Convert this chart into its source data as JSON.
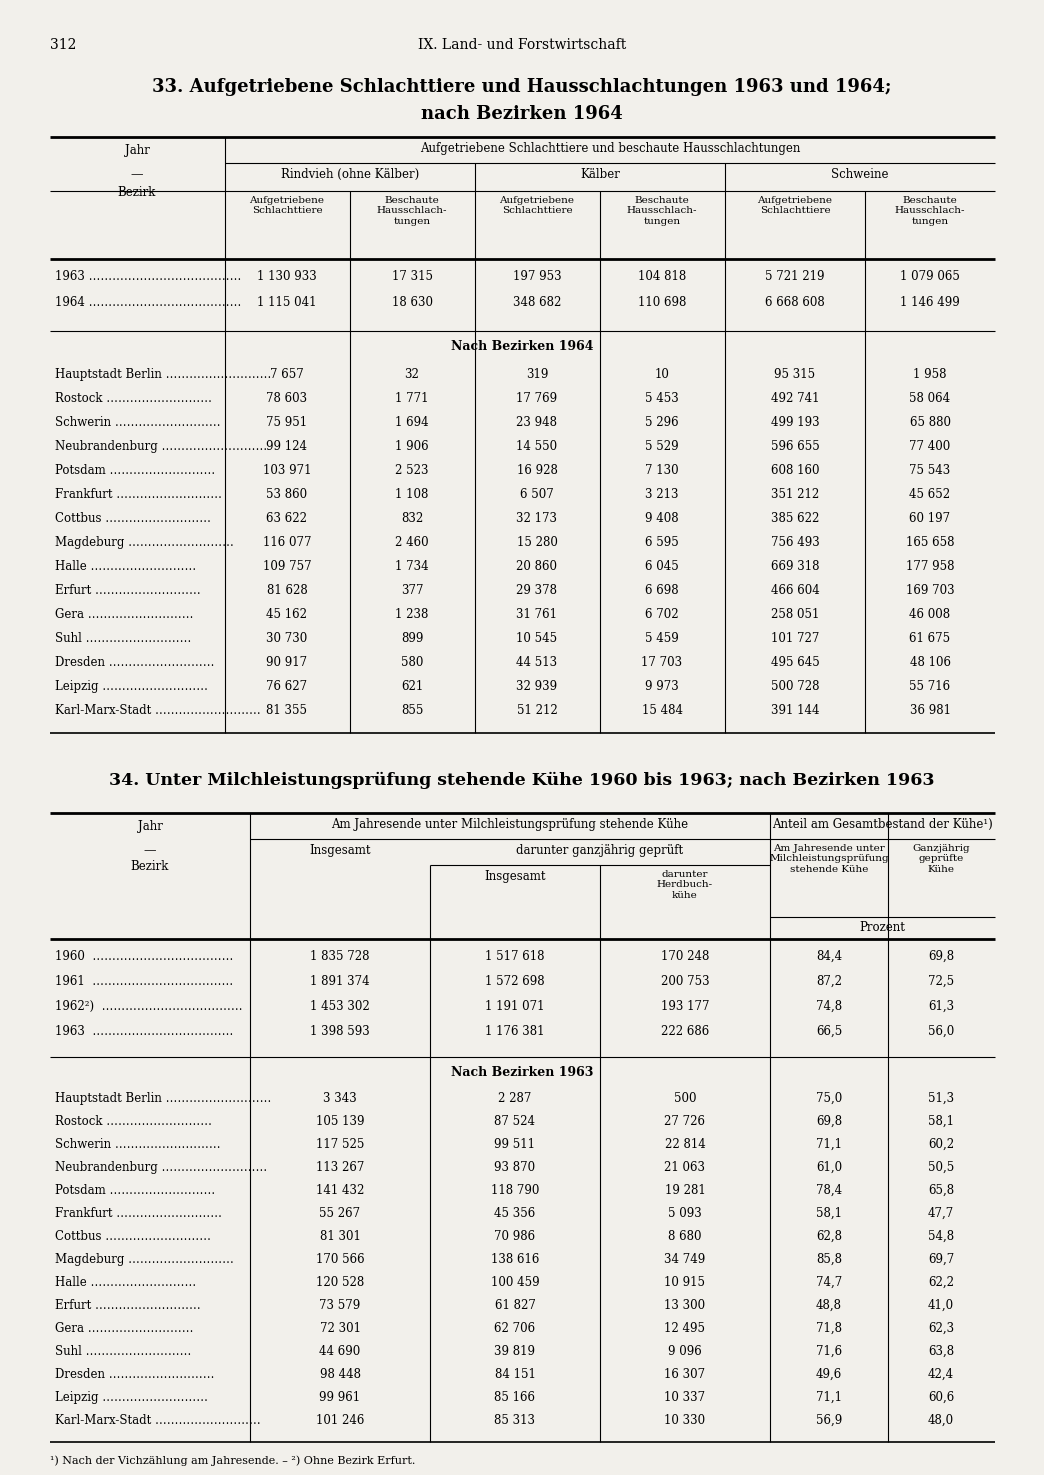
{
  "page_number": "312",
  "section_title": "IX. Land- und Forstwirtschaft",
  "table1_title_line1": "33. Aufgetriebene Schlachttiere und Hausschlachtungen 1963 und 1964;",
  "table1_title_line2": "nach Bezirken 1964",
  "table1_main_header": "Aufgetriebene Schlachttiere und beschaute Hausschlachtungen",
  "table1_year_rows": [
    [
      "1963",
      "1 130 933",
      "17 315",
      "197 953",
      "104 818",
      "5 721 219",
      "1 079 065"
    ],
    [
      "1964",
      "1 115 041",
      "18 630",
      "348 682",
      "110 698",
      "6 668 608",
      "1 146 499"
    ]
  ],
  "table1_bezirk_subheader": "Nach Bezirken 1964",
  "table1_bezirk_rows": [
    [
      "Hauptstadt Berlin",
      "7 657",
      "32",
      "319",
      "10",
      "95 315",
      "1 958"
    ],
    [
      "Rostock",
      "78 603",
      "1 771",
      "17 769",
      "5 453",
      "492 741",
      "58 064"
    ],
    [
      "Schwerin",
      "75 951",
      "1 694",
      "23 948",
      "5 296",
      "499 193",
      "65 880"
    ],
    [
      "Neubrandenburg",
      "99 124",
      "1 906",
      "14 550",
      "5 529",
      "596 655",
      "77 400"
    ],
    [
      "Potsdam",
      "103 971",
      "2 523",
      "16 928",
      "7 130",
      "608 160",
      "75 543"
    ],
    [
      "Frankfurt",
      "53 860",
      "1 108",
      "6 507",
      "3 213",
      "351 212",
      "45 652"
    ],
    [
      "Cottbus",
      "63 622",
      "832",
      "32 173",
      "9 408",
      "385 622",
      "60 197"
    ],
    [
      "Magdeburg",
      "116 077",
      "2 460",
      "15 280",
      "6 595",
      "756 493",
      "165 658"
    ],
    [
      "Halle",
      "109 757",
      "1 734",
      "20 860",
      "6 045",
      "669 318",
      "177 958"
    ],
    [
      "Erfurt",
      "81 628",
      "377",
      "29 378",
      "6 698",
      "466 604",
      "169 703"
    ],
    [
      "Gera",
      "45 162",
      "1 238",
      "31 761",
      "6 702",
      "258 051",
      "46 008"
    ],
    [
      "Suhl",
      "30 730",
      "899",
      "10 545",
      "5 459",
      "101 727",
      "61 675"
    ],
    [
      "Dresden",
      "90 917",
      "580",
      "44 513",
      "17 703",
      "495 645",
      "48 106"
    ],
    [
      "Leipzig",
      "76 627",
      "621",
      "32 939",
      "9 973",
      "500 728",
      "55 716"
    ],
    [
      "Karl-Marx-Stadt",
      "81 355",
      "855",
      "51 212",
      "15 484",
      "391 144",
      "36 981"
    ]
  ],
  "table2_title": "34. Unter Milchleistungsprüfung stehende Kühe 1960 bis 1963; nach Bezirken 1963",
  "table2_main_header1": "Am Jahresende unter Milchleistungsprüfung stehende Kühe",
  "table2_main_header2": "Anteil am Gesamtbestand der Kühe¹)",
  "table2_year_rows": [
    [
      "1960",
      "1 835 728",
      "1 517 618",
      "170 248",
      "84,4",
      "69,8"
    ],
    [
      "1961",
      "1 891 374",
      "1 572 698",
      "200 753",
      "87,2",
      "72,5"
    ],
    [
      "1962²)",
      "1 453 302",
      "1 191 071",
      "193 177",
      "74,8",
      "61,3"
    ],
    [
      "1963",
      "1 398 593",
      "1 176 381",
      "222 686",
      "66,5",
      "56,0"
    ]
  ],
  "table2_bezirk_subheader": "Nach Bezirken 1963",
  "table2_bezirk_rows": [
    [
      "Hauptstadt Berlin",
      "3 343",
      "2 287",
      "500",
      "75,0",
      "51,3"
    ],
    [
      "Rostock",
      "105 139",
      "87 524",
      "27 726",
      "69,8",
      "58,1"
    ],
    [
      "Schwerin",
      "117 525",
      "99 511",
      "22 814",
      "71,1",
      "60,2"
    ],
    [
      "Neubrandenburg",
      "113 267",
      "93 870",
      "21 063",
      "61,0",
      "50,5"
    ],
    [
      "Potsdam",
      "141 432",
      "118 790",
      "19 281",
      "78,4",
      "65,8"
    ],
    [
      "Frankfurt",
      "55 267",
      "45 356",
      "5 093",
      "58,1",
      "47,7"
    ],
    [
      "Cottbus",
      "81 301",
      "70 986",
      "8 680",
      "62,8",
      "54,8"
    ],
    [
      "Magdeburg",
      "170 566",
      "138 616",
      "34 749",
      "85,8",
      "69,7"
    ],
    [
      "Halle",
      "120 528",
      "100 459",
      "10 915",
      "74,7",
      "62,2"
    ],
    [
      "Erfurt",
      "73 579",
      "61 827",
      "13 300",
      "48,8",
      "41,0"
    ],
    [
      "Gera",
      "72 301",
      "62 706",
      "12 495",
      "71,8",
      "62,3"
    ],
    [
      "Suhl",
      "44 690",
      "39 819",
      "9 096",
      "71,6",
      "63,8"
    ],
    [
      "Dresden",
      "98 448",
      "84 151",
      "16 307",
      "49,6",
      "42,4"
    ],
    [
      "Leipzig",
      "99 961",
      "85 166",
      "10 337",
      "71,1",
      "60,6"
    ],
    [
      "Karl-Marx-Stadt",
      "101 246",
      "85 313",
      "10 330",
      "56,9",
      "48,0"
    ]
  ],
  "footnote": "¹) Nach der Vichzählung am Jahresende. – ²) Ohne Bezirk Erfurt.",
  "bg_color": "#f2f0eb"
}
